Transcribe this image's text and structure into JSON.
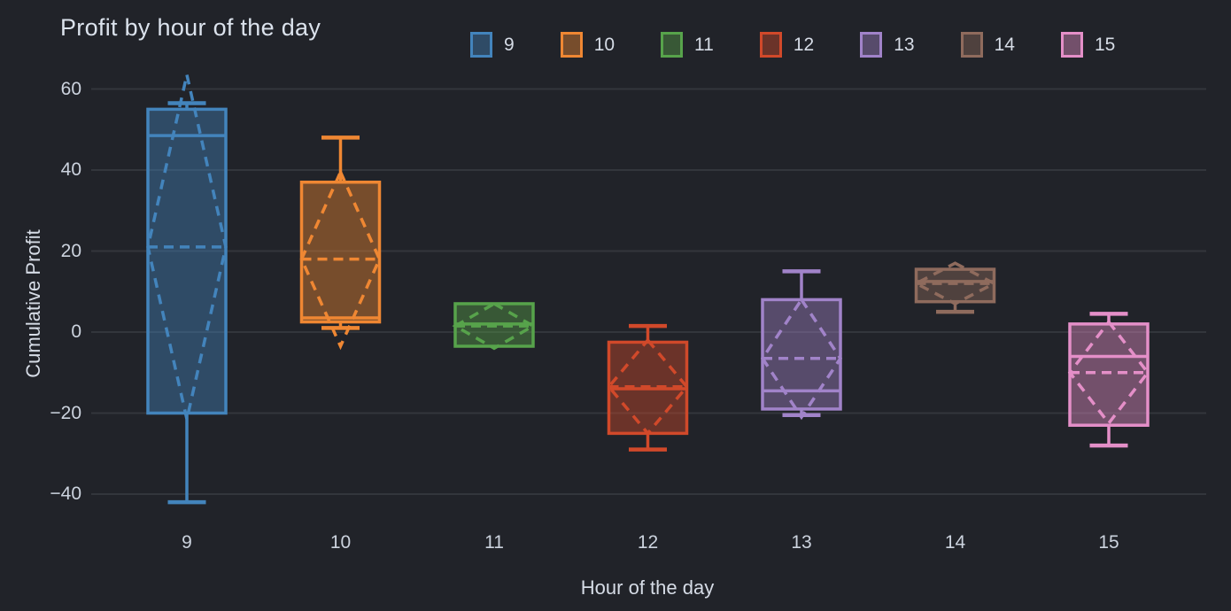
{
  "title": "Profit by hour of the day",
  "axes": {
    "x_title": "Hour of the day",
    "y_title": "Cumulative Profit",
    "y_ticks": [
      60,
      40,
      20,
      0,
      -20,
      -40
    ],
    "x_ticks": [
      "9",
      "10",
      "11",
      "12",
      "13",
      "14",
      "15"
    ]
  },
  "colors": {
    "background": "#212329",
    "gridline": "#33363c",
    "tick_text": "#ccd3de",
    "title_text": "#dbe2ec",
    "fill_alpha": 0.42
  },
  "chart_data": {
    "type": "box",
    "title": "Profit by hour of the day",
    "xlabel": "Hour of the day",
    "ylabel": "Cumulative Profit",
    "ylim": [
      -48,
      63
    ],
    "grid": true,
    "legend_position": "top-right",
    "mean_style": "dashed mean line with dashed standard-deviation diamond",
    "categories": [
      "9",
      "10",
      "11",
      "12",
      "13",
      "14",
      "15"
    ],
    "series": [
      {
        "name": "9",
        "color": "#4384bc",
        "min": -42,
        "q1": -20,
        "median": 48.5,
        "mean": 21,
        "q3": 55,
        "max": 56.5,
        "sd": 42.5
      },
      {
        "name": "10",
        "color": "#ef8733",
        "min": 1,
        "q1": 2.5,
        "median": 3.5,
        "mean": 18,
        "q3": 37,
        "max": 48,
        "sd": 21.5
      },
      {
        "name": "11",
        "color": "#57a34b",
        "min": -3.5,
        "q1": -3.5,
        "median": 2,
        "mean": 1.5,
        "q3": 7,
        "max": 7,
        "sd": 5.5
      },
      {
        "name": "12",
        "color": "#d1492a",
        "min": -29,
        "q1": -25,
        "median": -14,
        "mean": -13.5,
        "q3": -2.5,
        "max": 1.5,
        "sd": 11.5
      },
      {
        "name": "13",
        "color": "#a183c9",
        "min": -20.5,
        "q1": -19,
        "median": -14.5,
        "mean": -6.5,
        "q3": 8,
        "max": 15,
        "sd": 14.5
      },
      {
        "name": "14",
        "color": "#8f6b5d",
        "min": 5,
        "q1": 7.5,
        "median": 12.5,
        "mean": 12,
        "q3": 15.5,
        "max": 15.5,
        "sd": 5
      },
      {
        "name": "15",
        "color": "#e48fc8",
        "min": -28,
        "q1": -23,
        "median": -6,
        "mean": -10,
        "q3": 2,
        "max": 4.5,
        "sd": 12.5
      }
    ]
  }
}
